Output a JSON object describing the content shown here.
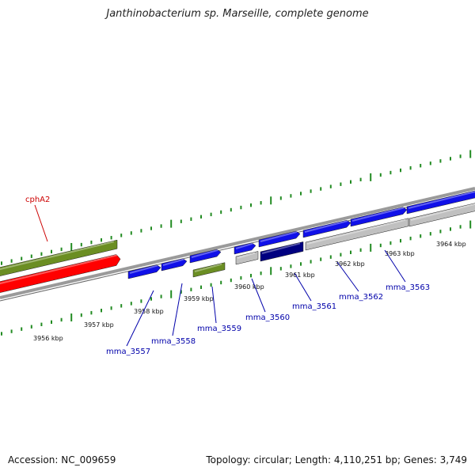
{
  "title": "Janthinobacterium sp. Marseille, complete genome",
  "footer": {
    "accession": "Accession: NC_009659",
    "summary": "Topology: circular; Length: 4,110,251 bp; Genes: 3,749"
  },
  "colors": {
    "tick": "#228b22",
    "backbone": "#808080",
    "gene_blue": "#1010e8",
    "gene_navy": "#000080",
    "gene_gray": "#c0c0c0",
    "gene_olive": "#6b8e23",
    "gene_red": "#ff0000",
    "label_blue": "#0000aa",
    "label_red": "#cc0000"
  },
  "kbp_labels": [
    "3956 kbp",
    "3957 kbp",
    "3958 kbp",
    "3959 kbp",
    "3960 kbp",
    "3961 kbp",
    "3962 kbp",
    "3963 kbp",
    "3964 kbp"
  ],
  "gene_labels": [
    {
      "name": "cphA2",
      "color": "#cc0000"
    },
    {
      "name": "mma_3557",
      "color": "#0000aa"
    },
    {
      "name": "mma_3558",
      "color": "#0000aa"
    },
    {
      "name": "mma_3559",
      "color": "#0000aa"
    },
    {
      "name": "mma_3560",
      "color": "#0000aa"
    },
    {
      "name": "mma_3561",
      "color": "#0000aa"
    },
    {
      "name": "mma_3562",
      "color": "#0000aa"
    },
    {
      "name": "mma_3563",
      "color": "#0000aa"
    }
  ]
}
